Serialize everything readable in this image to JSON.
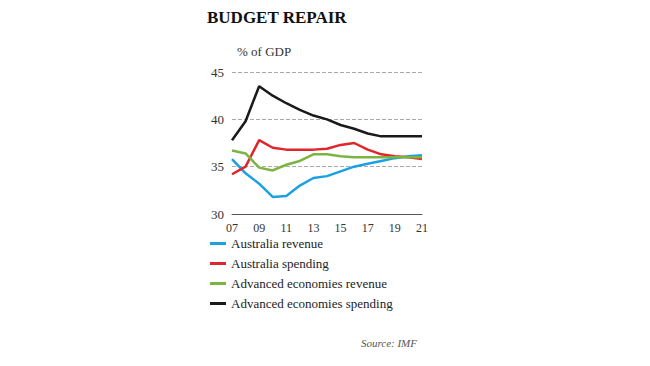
{
  "chart_data": {
    "type": "line",
    "title": "BUDGET REPAIR",
    "subtitle": "% of GDP",
    "source": "Source: IMF",
    "categories": [
      "07",
      null,
      "09",
      null,
      "11",
      null,
      "13",
      null,
      "15",
      null,
      "17",
      null,
      "19",
      null,
      "21"
    ],
    "series": [
      {
        "name": "Australia revenue",
        "color": "#1ba1e2",
        "values": [
          35.8,
          34.3,
          33.2,
          31.8,
          31.9,
          33.0,
          33.8,
          34.0,
          34.5,
          35.0,
          35.3,
          35.6,
          35.9,
          36.1,
          36.2
        ]
      },
      {
        "name": "Australia spending",
        "color": "#e0262b",
        "values": [
          34.2,
          35.0,
          37.8,
          37.0,
          36.8,
          36.8,
          36.8,
          36.9,
          37.3,
          37.5,
          36.8,
          36.3,
          36.1,
          36.0,
          35.8
        ]
      },
      {
        "name": "Advanced economies revenue",
        "color": "#7cb342",
        "values": [
          36.7,
          36.4,
          34.9,
          34.6,
          35.2,
          35.6,
          36.3,
          36.3,
          36.1,
          36.0,
          36.0,
          36.0,
          36.0,
          36.0,
          36.0
        ]
      },
      {
        "name": "Advanced economies spending",
        "color": "#1a1a1a",
        "values": [
          37.8,
          39.8,
          43.5,
          42.5,
          41.7,
          41.0,
          40.4,
          40.0,
          39.4,
          39.0,
          38.5,
          38.2,
          38.2,
          38.2,
          38.2
        ]
      }
    ],
    "ylim": [
      30,
      45
    ],
    "yticks": [
      30,
      35,
      40,
      45
    ],
    "grid": true,
    "legend": "bottom"
  }
}
